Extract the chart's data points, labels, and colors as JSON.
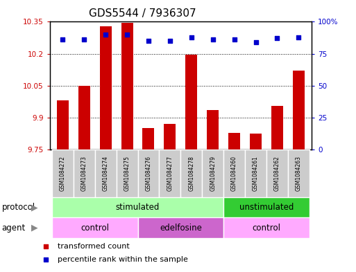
{
  "title": "GDS5544 / 7936307",
  "samples": [
    "GSM1084272",
    "GSM1084273",
    "GSM1084274",
    "GSM1084275",
    "GSM1084276",
    "GSM1084277",
    "GSM1084278",
    "GSM1084279",
    "GSM1084260",
    "GSM1084261",
    "GSM1084262",
    "GSM1084263"
  ],
  "transformed_counts": [
    9.98,
    10.05,
    10.33,
    10.345,
    9.85,
    9.87,
    10.195,
    9.935,
    9.83,
    9.825,
    9.955,
    10.12
  ],
  "percentile_ranks": [
    86,
    86,
    90,
    90,
    85,
    85,
    88,
    86,
    86,
    84,
    87,
    88
  ],
  "ylim_left": [
    9.75,
    10.35
  ],
  "ylim_right": [
    0,
    100
  ],
  "yticks_left": [
    9.75,
    9.9,
    10.05,
    10.2,
    10.35
  ],
  "yticks_right": [
    0,
    25,
    50,
    75,
    100
  ],
  "ytick_labels_left": [
    "9.75",
    "9.9",
    "10.05",
    "10.2",
    "10.35"
  ],
  "ytick_labels_right": [
    "0",
    "25",
    "50",
    "75",
    "100%"
  ],
  "bar_color": "#cc0000",
  "scatter_color": "#0000cc",
  "bar_bottom": 9.75,
  "protocol_groups": [
    {
      "label": "stimulated",
      "start": 0,
      "end": 8,
      "color": "#aaffaa"
    },
    {
      "label": "unstimulated",
      "start": 8,
      "end": 12,
      "color": "#33cc33"
    }
  ],
  "agent_groups": [
    {
      "label": "control",
      "start": 0,
      "end": 4,
      "color": "#ffaaff"
    },
    {
      "label": "edelfosine",
      "start": 4,
      "end": 8,
      "color": "#cc66cc"
    },
    {
      "label": "control",
      "start": 8,
      "end": 12,
      "color": "#ffaaff"
    }
  ],
  "legend_bar_label": "transformed count",
  "legend_scatter_label": "percentile rank within the sample",
  "title_fontsize": 11,
  "tick_fontsize": 7.5,
  "sample_fontsize": 5.5,
  "row_label_fontsize": 8.5,
  "legend_fontsize": 8
}
